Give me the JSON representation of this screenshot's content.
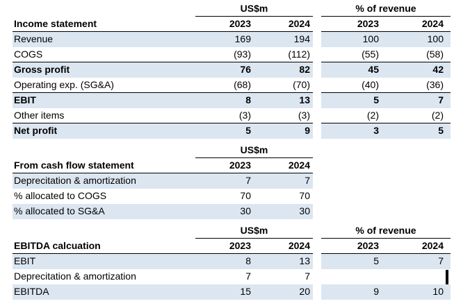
{
  "colors": {
    "row_shade": "#dce6f1",
    "grid_border": "#000000",
    "cursor": "#000000"
  },
  "cursor": {
    "visible": true
  },
  "sections": [
    {
      "title": "Income statement",
      "g1_header": "US$m",
      "g2_header": "% of revenue",
      "years": [
        "2023",
        "2024"
      ],
      "rows": [
        {
          "label": "Revenue",
          "v1": [
            "169",
            "194"
          ],
          "v2": [
            "100",
            "100"
          ],
          "shaded": true,
          "bold": false,
          "rule": false
        },
        {
          "label": "COGS",
          "v1": [
            "(93)",
            "(112)"
          ],
          "v2": [
            "(55)",
            "(58)"
          ],
          "shaded": false,
          "bold": false,
          "rule": true
        },
        {
          "label": "Gross profit",
          "v1": [
            "76",
            "82"
          ],
          "v2": [
            "45",
            "42"
          ],
          "shaded": true,
          "bold": true,
          "rule": false
        },
        {
          "label": "Operating exp. (SG&A)",
          "v1": [
            "(68)",
            "(70)"
          ],
          "v2": [
            "(40)",
            "(36)"
          ],
          "shaded": false,
          "bold": false,
          "rule": true
        },
        {
          "label": "EBIT",
          "v1": [
            "8",
            "13"
          ],
          "v2": [
            "5",
            "7"
          ],
          "shaded": true,
          "bold": true,
          "rule": false
        },
        {
          "label": "Other items",
          "v1": [
            "(3)",
            "(3)"
          ],
          "v2": [
            "(2)",
            "(2)"
          ],
          "shaded": false,
          "bold": false,
          "rule": true
        },
        {
          "label": "Net profit",
          "v1": [
            "5",
            "9"
          ],
          "v2": [
            "3",
            "5"
          ],
          "shaded": true,
          "bold": true,
          "rule": false
        }
      ]
    },
    {
      "title": "From cash flow statement",
      "g1_header": "US$m",
      "g2_header": null,
      "years": [
        "2023",
        "2024"
      ],
      "rows": [
        {
          "label": "Deprecitation & amortization",
          "v1": [
            "7",
            "7"
          ],
          "v2": null,
          "shaded": true,
          "bold": false,
          "rule": false
        },
        {
          "label": "% allocated to COGS",
          "v1": [
            "70",
            "70"
          ],
          "v2": null,
          "shaded": false,
          "bold": false,
          "rule": false
        },
        {
          "label": "% allocated to SG&A",
          "v1": [
            "30",
            "30"
          ],
          "v2": null,
          "shaded": true,
          "bold": false,
          "rule": false
        }
      ]
    },
    {
      "title": "EBITDA calcuation",
      "g1_header": "US$m",
      "g2_header": "% of revenue",
      "years": [
        "2023",
        "2024"
      ],
      "rows": [
        {
          "label": "EBIT",
          "v1": [
            "8",
            "13"
          ],
          "v2": [
            "5",
            "7"
          ],
          "shaded": true,
          "bold": false,
          "rule": false
        },
        {
          "label": "Deprecitation & amortization",
          "v1": [
            "7",
            "7"
          ],
          "v2": [
            "",
            ""
          ],
          "shaded": false,
          "bold": false,
          "rule": false
        },
        {
          "label": "EBITDA",
          "v1": [
            "15",
            "20"
          ],
          "v2": [
            "9",
            "10"
          ],
          "shaded": true,
          "bold": false,
          "rule": false
        }
      ]
    }
  ]
}
